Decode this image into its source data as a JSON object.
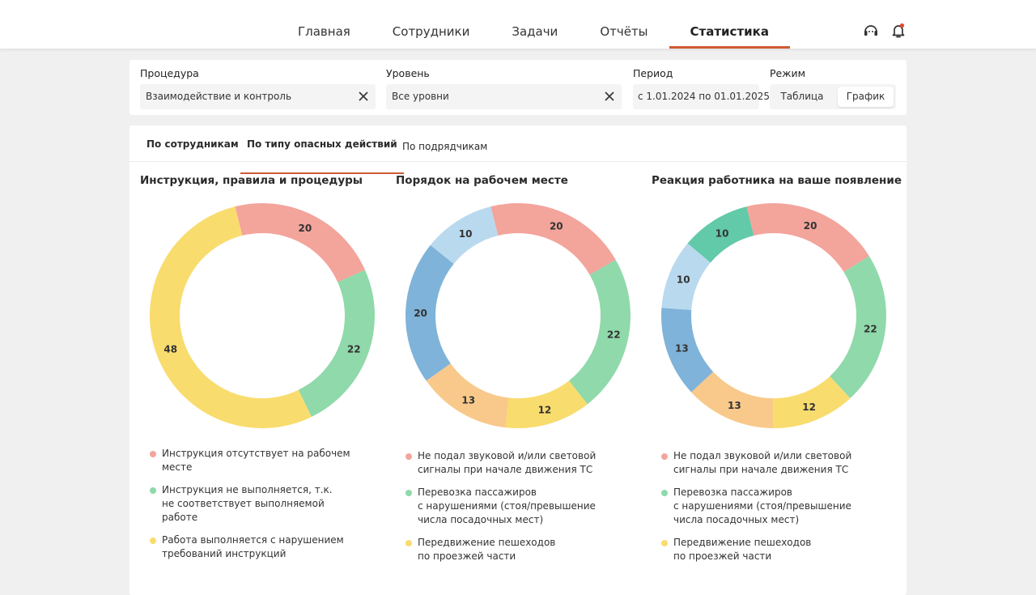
{
  "nav": {
    "items": [
      {
        "label": "Главная",
        "active": false
      },
      {
        "label": "Сотрудники",
        "active": false
      },
      {
        "label": "Задачи",
        "active": false
      },
      {
        "label": "Отчёты",
        "active": false
      },
      {
        "label": "Статистика",
        "active": true
      }
    ],
    "icons": [
      "support-icon",
      "bell-icon"
    ],
    "notification_dot_color": "#e8472e"
  },
  "filters": {
    "procedure": {
      "label": "Процедура",
      "value": "Взаимодействие и контроль"
    },
    "level": {
      "label": "Уровень",
      "value": "Все уровни"
    },
    "period": {
      "label": "Период",
      "value": "с 1.01.2024 по 01.01.2025"
    },
    "mode": {
      "label": "Режим",
      "options": [
        "Таблица",
        "График"
      ],
      "selected": "График"
    }
  },
  "tabs": [
    {
      "label": "По сотрудникам",
      "active": false
    },
    {
      "label": "По типу опасных действий",
      "active": true
    },
    {
      "label": "По подрядчикам",
      "active": false
    }
  ],
  "accent_color": "#d05a33",
  "chart_data": [
    {
      "type": "pie",
      "title": "Инструкция, правила и процедуры",
      "slices": [
        {
          "value": 20,
          "color": "#f3a49b"
        },
        {
          "value": 22,
          "color": "#8fd9ab"
        },
        {
          "value": 48,
          "color": "#f9dc6e"
        }
      ],
      "legend": [
        {
          "label": "Инструкция отсутствует на рабочем\nместе",
          "color": "#f3a49b"
        },
        {
          "label": "Инструкция не выполняется, т.к.\nне соответствует выполняемой\nработе",
          "color": "#8fd9ab"
        },
        {
          "label": "Работа выполняется с нарушением\nтребований инструкций",
          "color": "#f9dc6e"
        }
      ]
    },
    {
      "type": "pie",
      "title": "Порядок на рабочем месте",
      "slices": [
        {
          "value": 20,
          "color": "#f3a49b"
        },
        {
          "value": 22,
          "color": "#8fd9ab"
        },
        {
          "value": 12,
          "color": "#f9dc6e"
        },
        {
          "value": 13,
          "color": "#f8c98a"
        },
        {
          "value": 20,
          "color": "#7fb3d9"
        },
        {
          "value": 10,
          "color": "#b9d9ef"
        }
      ],
      "legend": [
        {
          "label": "Не подал звуковой и/или световой\nсигналы при начале движения ТС",
          "color": "#f3a49b"
        },
        {
          "label": "Перевозка пассажиров\nс нарушениями (стоя/превышение\nчисла посадочных мест)",
          "color": "#8fd9ab"
        },
        {
          "label": "Передвижение пешеходов\nпо проезжей части",
          "color": "#f9dc6e"
        }
      ]
    },
    {
      "type": "pie",
      "title": "Реакция работника на ваше появление",
      "slices": [
        {
          "value": 20,
          "color": "#f3a49b"
        },
        {
          "value": 22,
          "color": "#8fd9ab"
        },
        {
          "value": 12,
          "color": "#f9dc6e"
        },
        {
          "value": 13,
          "color": "#f8c98a"
        },
        {
          "value": 13,
          "color": "#7fb3d9"
        },
        {
          "value": 10,
          "color": "#b9d9ef"
        },
        {
          "value": 10,
          "color": "#62c9a9"
        }
      ],
      "legend": [
        {
          "label": "Не подал звуковой и/или световой\nсигналы при начале движения ТС",
          "color": "#f3a49b"
        },
        {
          "label": "Перевозка пассажиров\nс нарушениями (стоя/превышение\nчисла посадочных мест)",
          "color": "#8fd9ab"
        },
        {
          "label": "Передвижение пешеходов\nпо проезжей части",
          "color": "#f9dc6e"
        }
      ]
    }
  ]
}
